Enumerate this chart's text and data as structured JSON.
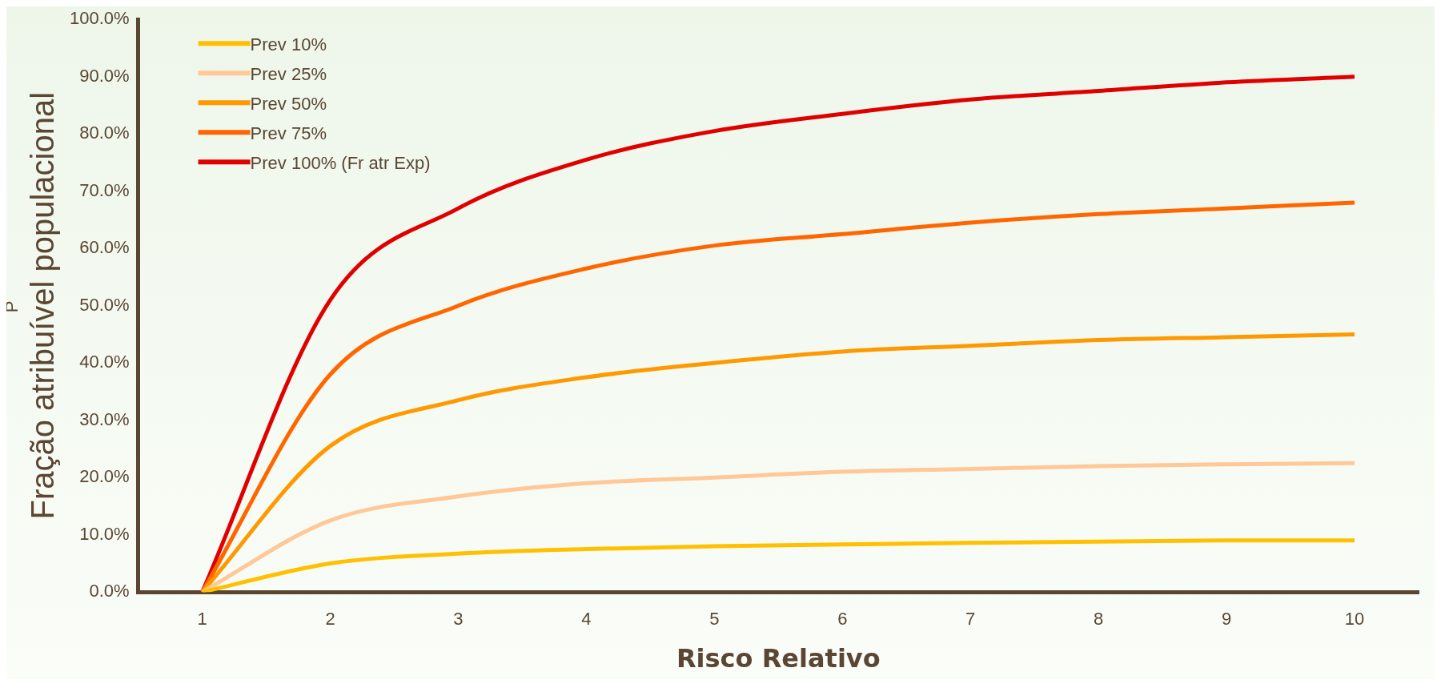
{
  "chart_data": {
    "type": "line",
    "xlabel": "Risco Relativo",
    "ylabel": "Fração atribuível populacional",
    "annotations": [
      "P"
    ],
    "categories": [
      "1",
      "2",
      "3",
      "4",
      "5",
      "6",
      "7",
      "8",
      "9",
      "10"
    ],
    "series": [
      {
        "name": "Prev 10%",
        "color": "#ffc000",
        "values": [
          0,
          5,
          6.7,
          7.5,
          8,
          8.3,
          8.6,
          8.8,
          9,
          9
        ]
      },
      {
        "name": "Prev 25%",
        "color": "#ffc896",
        "values": [
          0,
          12.5,
          16.7,
          19,
          20,
          21,
          21.5,
          22,
          22.3,
          22.5
        ]
      },
      {
        "name": "Prev 50%",
        "color": "#ff9900",
        "values": [
          0,
          25.5,
          33.5,
          37.5,
          40,
          42,
          43,
          44,
          44.5,
          45
        ]
      },
      {
        "name": "Prev 75%",
        "color": "#ff6600",
        "values": [
          0,
          38,
          50,
          56.5,
          60.5,
          62.5,
          64.5,
          66,
          67,
          68
        ]
      },
      {
        "name": "Prev 100% (Fr atr Exp)",
        "color": "#e00000",
        "values": [
          0,
          51,
          67,
          75.5,
          80.5,
          83.5,
          86,
          87.5,
          89,
          90
        ]
      }
    ],
    "ylim": [
      0,
      100
    ],
    "yticks": [
      {
        "value": 0,
        "label": "0.0%"
      },
      {
        "value": 10,
        "label": "10.0%"
      },
      {
        "value": 20,
        "label": "20.0%"
      },
      {
        "value": 30,
        "label": "30.0%"
      },
      {
        "value": 40,
        "label": "40.0%"
      },
      {
        "value": 50,
        "label": "50.0%"
      },
      {
        "value": 60,
        "label": "60.0%"
      },
      {
        "value": 70,
        "label": "70.0%"
      },
      {
        "value": 80,
        "label": "80.0%"
      },
      {
        "value": 90,
        "label": "90.0%"
      },
      {
        "value": 100,
        "label": "100.0%"
      }
    ],
    "grid": false,
    "legend": "top left",
    "marker": "none",
    "line_style": "solid"
  }
}
